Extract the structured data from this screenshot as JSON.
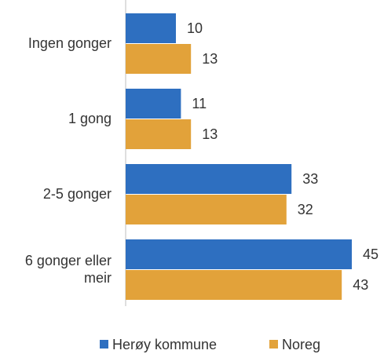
{
  "chart_data": {
    "type": "hbar",
    "categories": [
      "Ingen gonger",
      "1 gong",
      "2-5 gonger",
      "6 gonger eller meir"
    ],
    "series": [
      {
        "name": "Herøy kommune",
        "color": "#2e6fc0",
        "values": [
          10,
          11,
          33,
          45
        ]
      },
      {
        "name": "Noreg",
        "color": "#e2a23a",
        "values": [
          13,
          13,
          32,
          43
        ]
      }
    ],
    "xlim": [
      0,
      50
    ],
    "legend": "bottom"
  }
}
